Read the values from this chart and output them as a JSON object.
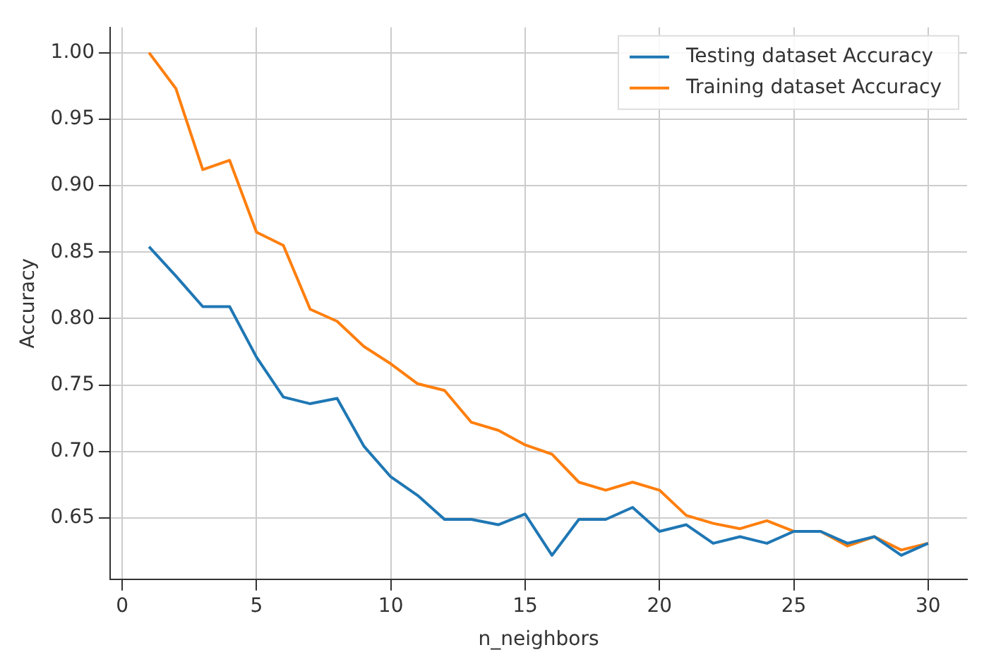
{
  "chart_data": {
    "type": "line",
    "xlabel": "n_neighbors",
    "ylabel": "Accuracy",
    "x": [
      1,
      2,
      3,
      4,
      5,
      6,
      7,
      8,
      9,
      10,
      11,
      12,
      13,
      14,
      15,
      16,
      17,
      18,
      19,
      20,
      21,
      22,
      23,
      24,
      25,
      26,
      27,
      28,
      29,
      30
    ],
    "series": [
      {
        "name": "Testing dataset Accuracy",
        "color": "#1f77b4",
        "values": [
          0.854,
          0.832,
          0.809,
          0.809,
          0.771,
          0.741,
          0.736,
          0.74,
          0.704,
          0.681,
          0.667,
          0.649,
          0.649,
          0.645,
          0.653,
          0.622,
          0.649,
          0.649,
          0.658,
          0.64,
          0.645,
          0.631,
          0.636,
          0.631,
          0.64,
          0.64,
          0.631,
          0.636,
          0.622,
          0.631
        ]
      },
      {
        "name": "Training dataset Accuracy",
        "color": "#ff7f0e",
        "values": [
          1.0,
          0.973,
          0.912,
          0.919,
          0.865,
          0.855,
          0.807,
          0.798,
          0.779,
          0.766,
          0.751,
          0.746,
          0.722,
          0.716,
          0.705,
          0.698,
          0.677,
          0.671,
          0.677,
          0.671,
          0.652,
          0.646,
          0.642,
          0.648,
          0.64,
          0.64,
          0.629,
          0.636,
          0.626,
          0.631
        ]
      }
    ],
    "xlim": [
      -0.45,
      31.45
    ],
    "ylim": [
      0.604,
      1.019
    ],
    "xticks": [
      0,
      5,
      10,
      15,
      20,
      25,
      30
    ],
    "yticks": [
      {
        "value": 0.65,
        "label": "0.65"
      },
      {
        "value": 0.7,
        "label": "0.70"
      },
      {
        "value": 0.75,
        "label": "0.75"
      },
      {
        "value": 0.8,
        "label": "0.80"
      },
      {
        "value": 0.85,
        "label": "0.85"
      },
      {
        "value": 0.9,
        "label": "0.90"
      },
      {
        "value": 0.95,
        "label": "0.95"
      },
      {
        "value": 1,
        "label": "1.00"
      }
    ],
    "grid": true,
    "legend": "top right",
    "marker": "none",
    "line_style": "solid"
  }
}
